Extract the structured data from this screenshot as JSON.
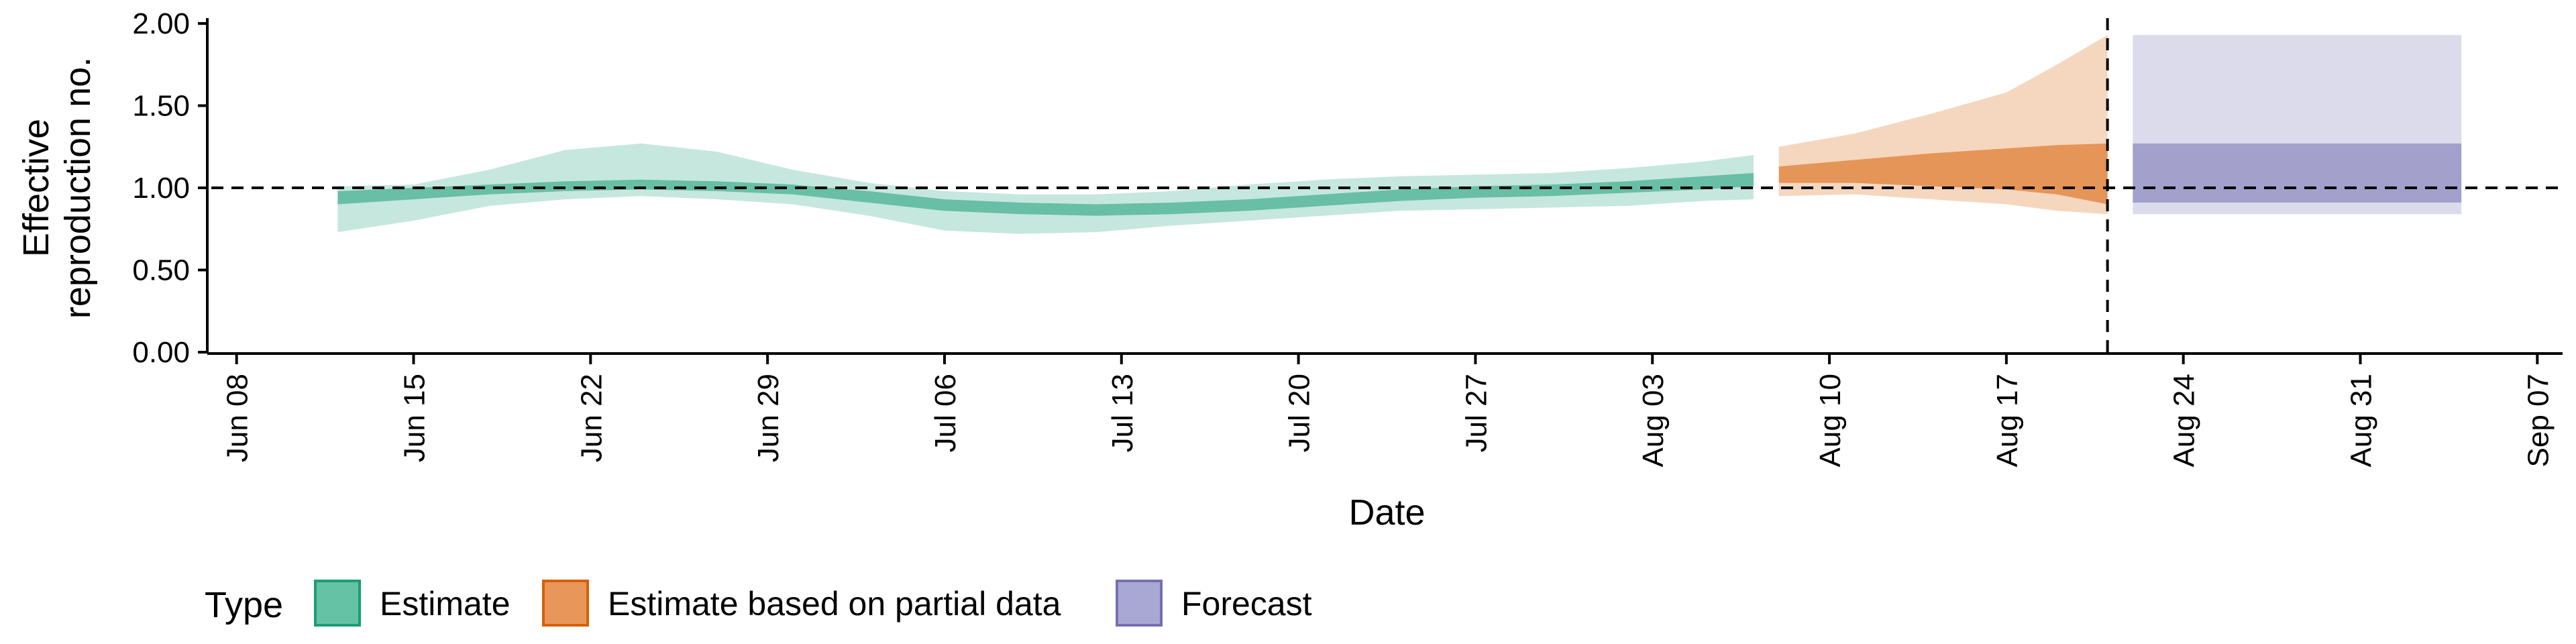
{
  "chart_data": {
    "type": "area",
    "xlabel": "Date",
    "ylabel_lines": [
      "Effective",
      "reproduction no."
    ],
    "ylim": [
      0,
      2.0
    ],
    "yticks": [
      {
        "value": 0,
        "label": "0.00"
      },
      {
        "value": 0.5,
        "label": "0.50"
      },
      {
        "value": 1.0,
        "label": "1.00"
      },
      {
        "value": 1.5,
        "label": "1.50"
      },
      {
        "value": 2.0,
        "label": "2.00"
      }
    ],
    "xlim": [
      "2020-06-07",
      "2020-09-08"
    ],
    "xticks": [
      {
        "date": "2020-06-08",
        "label": "Jun 08"
      },
      {
        "date": "2020-06-15",
        "label": "Jun 15"
      },
      {
        "date": "2020-06-22",
        "label": "Jun 22"
      },
      {
        "date": "2020-06-29",
        "label": "Jun 29"
      },
      {
        "date": "2020-07-06",
        "label": "Jul 06"
      },
      {
        "date": "2020-07-13",
        "label": "Jul 13"
      },
      {
        "date": "2020-07-20",
        "label": "Jul 20"
      },
      {
        "date": "2020-07-27",
        "label": "Jul 27"
      },
      {
        "date": "2020-08-03",
        "label": "Aug 03"
      },
      {
        "date": "2020-08-10",
        "label": "Aug 10"
      },
      {
        "date": "2020-08-17",
        "label": "Aug 17"
      },
      {
        "date": "2020-08-24",
        "label": "Aug 24"
      },
      {
        "date": "2020-08-31",
        "label": "Aug 31"
      },
      {
        "date": "2020-09-07",
        "label": "Sep 07"
      }
    ],
    "reference_line": {
      "y": 1.0,
      "style": "dashed"
    },
    "vertical_line": {
      "date": "2020-08-21",
      "style": "dashed"
    },
    "legend": {
      "title": "Type",
      "position": "bottom-left",
      "items": [
        {
          "label": "Estimate",
          "fill": "#66c2a5",
          "stroke": "#1b9e77"
        },
        {
          "label": "Estimate based on partial data",
          "fill": "#e8965a",
          "stroke": "#d95f02"
        },
        {
          "label": "Forecast",
          "fill": "#a9a7d4",
          "stroke": "#7570b3"
        }
      ]
    },
    "series": [
      {
        "name": "Estimate",
        "color": "#1b9e77",
        "points": [
          {
            "date": "2020-06-12",
            "lower90": 0.73,
            "upper90": 1.01,
            "lower50": 0.9,
            "upper50": 0.98
          },
          {
            "date": "2020-06-15",
            "lower90": 0.8,
            "upper90": 1.02,
            "lower50": 0.93,
            "upper50": 1.0
          },
          {
            "date": "2020-06-18",
            "lower90": 0.89,
            "upper90": 1.11,
            "lower50": 0.96,
            "upper50": 1.02
          },
          {
            "date": "2020-06-21",
            "lower90": 0.93,
            "upper90": 1.23,
            "lower50": 0.98,
            "upper50": 1.04
          },
          {
            "date": "2020-06-24",
            "lower90": 0.95,
            "upper90": 1.27,
            "lower50": 0.99,
            "upper50": 1.05
          },
          {
            "date": "2020-06-27",
            "lower90": 0.93,
            "upper90": 1.22,
            "lower50": 0.98,
            "upper50": 1.04
          },
          {
            "date": "2020-06-30",
            "lower90": 0.9,
            "upper90": 1.11,
            "lower50": 0.96,
            "upper50": 1.02
          },
          {
            "date": "2020-07-03",
            "lower90": 0.83,
            "upper90": 1.03,
            "lower50": 0.91,
            "upper50": 0.98
          },
          {
            "date": "2020-07-06",
            "lower90": 0.74,
            "upper90": 0.98,
            "lower50": 0.86,
            "upper50": 0.93
          },
          {
            "date": "2020-07-09",
            "lower90": 0.72,
            "upper90": 0.96,
            "lower50": 0.84,
            "upper50": 0.91
          },
          {
            "date": "2020-07-12",
            "lower90": 0.73,
            "upper90": 0.96,
            "lower50": 0.83,
            "upper50": 0.9
          },
          {
            "date": "2020-07-15",
            "lower90": 0.77,
            "upper90": 0.98,
            "lower50": 0.84,
            "upper50": 0.91
          },
          {
            "date": "2020-07-18",
            "lower90": 0.8,
            "upper90": 1.02,
            "lower50": 0.86,
            "upper50": 0.93
          },
          {
            "date": "2020-07-21",
            "lower90": 0.83,
            "upper90": 1.05,
            "lower50": 0.89,
            "upper50": 0.96
          },
          {
            "date": "2020-07-24",
            "lower90": 0.86,
            "upper90": 1.07,
            "lower50": 0.92,
            "upper50": 0.99
          },
          {
            "date": "2020-07-27",
            "lower90": 0.87,
            "upper90": 1.08,
            "lower50": 0.94,
            "upper50": 1.01
          },
          {
            "date": "2020-07-30",
            "lower90": 0.88,
            "upper90": 1.09,
            "lower50": 0.95,
            "upper50": 1.02
          },
          {
            "date": "2020-08-02",
            "lower90": 0.89,
            "upper90": 1.12,
            "lower50": 0.97,
            "upper50": 1.04
          },
          {
            "date": "2020-08-05",
            "lower90": 0.92,
            "upper90": 1.16,
            "lower50": 0.99,
            "upper50": 1.07
          },
          {
            "date": "2020-08-07",
            "lower90": 0.93,
            "upper90": 1.2,
            "lower50": 1.01,
            "upper50": 1.09
          }
        ]
      },
      {
        "name": "Estimate based on partial data",
        "color": "#d95f02",
        "points": [
          {
            "date": "2020-08-08",
            "lower90": 0.95,
            "upper90": 1.25,
            "lower50": 1.03,
            "upper50": 1.13
          },
          {
            "date": "2020-08-11",
            "lower90": 0.96,
            "upper90": 1.33,
            "lower50": 1.03,
            "upper50": 1.17
          },
          {
            "date": "2020-08-14",
            "lower90": 0.93,
            "upper90": 1.45,
            "lower50": 1.01,
            "upper50": 1.21
          },
          {
            "date": "2020-08-17",
            "lower90": 0.9,
            "upper90": 1.58,
            "lower50": 0.99,
            "upper50": 1.24
          },
          {
            "date": "2020-08-19",
            "lower90": 0.86,
            "upper90": 1.75,
            "lower50": 0.96,
            "upper50": 1.26
          },
          {
            "date": "2020-08-21",
            "lower90": 0.84,
            "upper90": 1.93,
            "lower50": 0.9,
            "upper50": 1.27
          }
        ]
      },
      {
        "name": "Forecast",
        "color": "#7570b3",
        "points": [
          {
            "date": "2020-08-22",
            "lower90": 0.84,
            "upper90": 1.93,
            "lower50": 0.91,
            "upper50": 1.27
          },
          {
            "date": "2020-09-04",
            "lower90": 0.84,
            "upper90": 1.93,
            "lower50": 0.91,
            "upper50": 1.27
          }
        ]
      }
    ]
  }
}
